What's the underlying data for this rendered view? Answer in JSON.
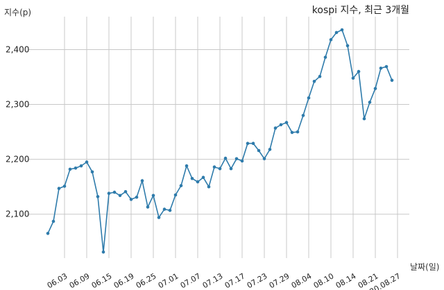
{
  "chart_data": {
    "type": "line",
    "title": "kospi 지수, 최근 3개월",
    "ylabel": "지수(p)",
    "xlabel": "날짜(일)",
    "ylim": [
      2020,
      2460
    ],
    "yticks": [
      2100,
      2200,
      2300,
      2400
    ],
    "ytick_labels": [
      "2,100",
      "2,200",
      "2,300",
      "2,400"
    ],
    "grid": true,
    "xtick_labels": [
      "06.03",
      "06.09",
      "06.15",
      "06.19",
      "06.25",
      "07.01",
      "07.07",
      "07.13",
      "07.17",
      "07.23",
      "07.29",
      "08.04",
      "08.10",
      "08.14",
      "08.21",
      "20.08.27"
    ],
    "xtick_index": [
      3,
      7,
      11,
      15,
      19,
      23,
      27,
      31,
      35,
      39,
      43,
      47,
      51,
      55,
      59,
      63
    ],
    "series": [
      {
        "values": [
          2065,
          2087,
          2147,
          2151,
          2182,
          2184,
          2188,
          2195,
          2177,
          2132,
          2031,
          2138,
          2140,
          2134,
          2141,
          2127,
          2131,
          2161,
          2113,
          2134,
          2094,
          2109,
          2107,
          2135,
          2152,
          2188,
          2165,
          2159,
          2167,
          2150,
          2186,
          2183,
          2202,
          2183,
          2201,
          2197,
          2229,
          2229,
          2216,
          2201,
          2218,
          2257,
          2263,
          2267,
          2249,
          2250,
          2280,
          2312,
          2342,
          2351,
          2386,
          2418,
          2431,
          2436,
          2407,
          2348,
          2360,
          2274,
          2304,
          2329,
          2366,
          2369,
          2344
        ]
      }
    ]
  }
}
